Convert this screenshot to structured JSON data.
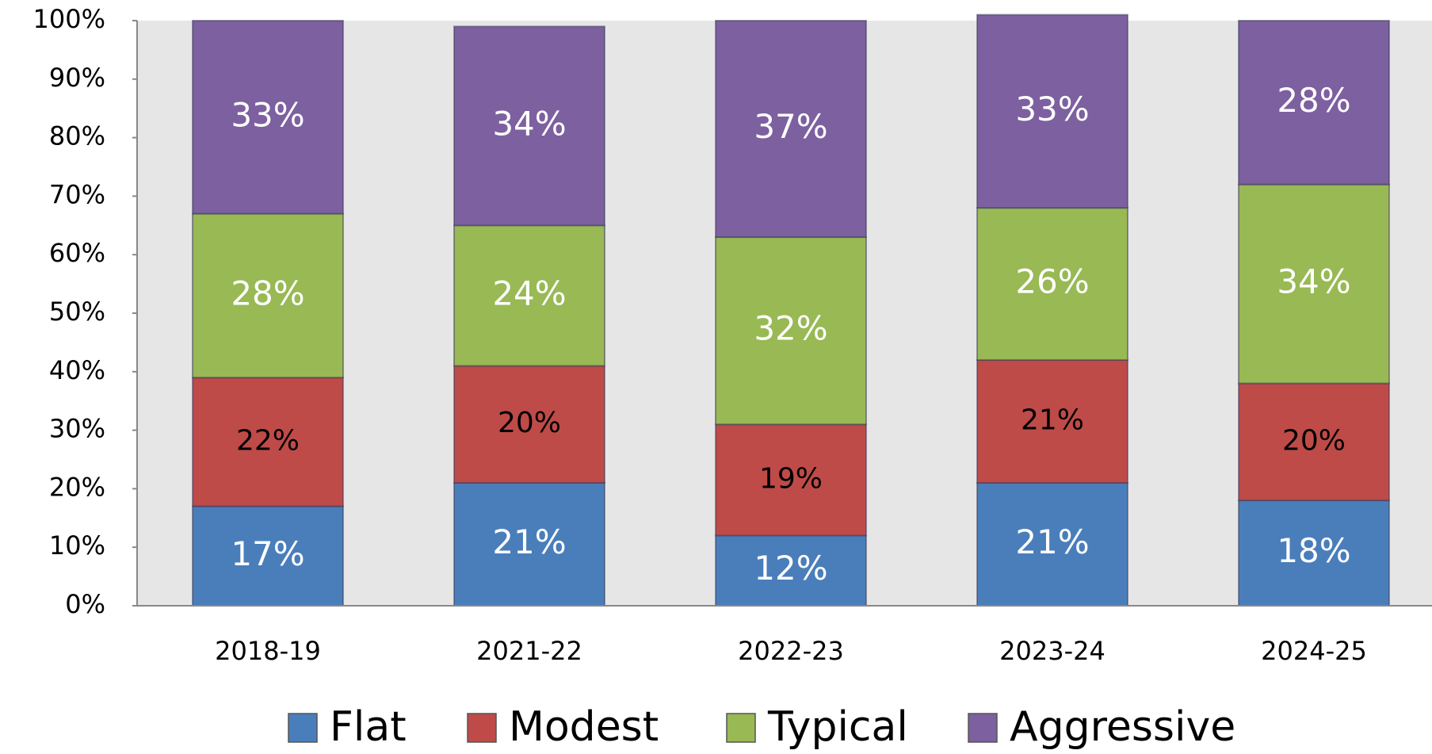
{
  "chart_data": {
    "type": "bar",
    "stacked": true,
    "categories": [
      "2018-19",
      "2021-22",
      "2022-23",
      "2023-24",
      "2024-25"
    ],
    "series": [
      {
        "name": "Flat",
        "color": "#4a7ebb",
        "label_color": "#ffffff",
        "values": [
          17,
          21,
          12,
          21,
          18
        ],
        "value_labels": [
          "17%",
          "21%",
          "12%",
          "21%",
          "18%"
        ]
      },
      {
        "name": "Modest",
        "color": "#be4b48",
        "label_color": "#000000",
        "values": [
          22,
          20,
          19,
          21,
          20
        ],
        "value_labels": [
          "22%",
          "20%",
          "19%",
          "21%",
          "20%"
        ]
      },
      {
        "name": "Typical",
        "color": "#98b954",
        "label_color": "#ffffff",
        "values": [
          28,
          24,
          32,
          26,
          34
        ],
        "value_labels": [
          "28%",
          "24%",
          "32%",
          "26%",
          "34%"
        ]
      },
      {
        "name": "Aggressive",
        "color": "#7d60a0",
        "label_color": "#ffffff",
        "values": [
          33,
          34,
          37,
          33,
          28
        ],
        "value_labels": [
          "33%",
          "34%",
          "37%",
          "33%",
          "28%"
        ]
      }
    ],
    "ylim": [
      0,
      100
    ],
    "yticks": [
      {
        "value": 0,
        "label": "0%"
      },
      {
        "value": 10,
        "label": "10%"
      },
      {
        "value": 20,
        "label": "20%"
      },
      {
        "value": 30,
        "label": "30%"
      },
      {
        "value": 40,
        "label": "40%"
      },
      {
        "value": 50,
        "label": "50%"
      },
      {
        "value": 60,
        "label": "60%"
      },
      {
        "value": 70,
        "label": "70%"
      },
      {
        "value": 80,
        "label": "80%"
      },
      {
        "value": 90,
        "label": "90%"
      },
      {
        "value": 100,
        "label": "100%"
      }
    ],
    "grid": false,
    "legend": "bottom",
    "background": "#e6e6e6"
  }
}
